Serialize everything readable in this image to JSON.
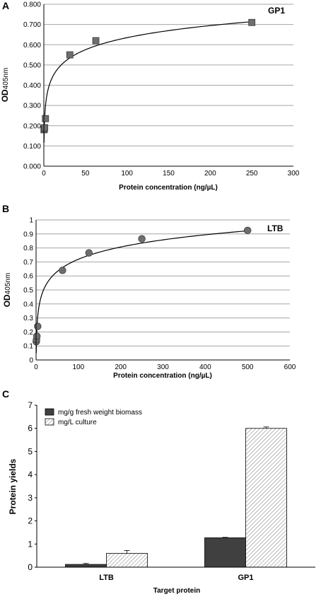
{
  "chart_data": [
    {
      "type": "scatter",
      "panel": "A",
      "inset_label": "GP1",
      "xlabel": "Protein concentration  (ng/µL)",
      "ylabel_main": "OD",
      "ylabel_sub": "405nm",
      "xlim": [
        0,
        300
      ],
      "ylim": [
        0,
        0.8
      ],
      "xticks": [
        "0",
        "50",
        "100",
        "150",
        "200",
        "250",
        "300"
      ],
      "yticks": [
        "0.000",
        "0.100",
        "0.200",
        "0.300",
        "0.400",
        "0.500",
        "0.600",
        "0.700",
        "0.800"
      ],
      "marker": "square",
      "marker_color": "#6e6e6e",
      "grid": true,
      "x": [
        0.24,
        0.49,
        0.98,
        1.95,
        31.25,
        62.5,
        250
      ],
      "y": [
        0.18,
        0.185,
        0.19,
        0.235,
        0.55,
        0.62,
        0.71
      ],
      "fit": "logarithmic"
    },
    {
      "type": "scatter",
      "panel": "B",
      "inset_label": "LTB",
      "xlabel": "Protein concentration (ng/µL)",
      "ylabel_main": "OD",
      "ylabel_sub": "405nm",
      "xlim": [
        0,
        600
      ],
      "ylim": [
        0,
        1
      ],
      "xticks": [
        "0",
        "100",
        "200",
        "300",
        "400",
        "500",
        "600"
      ],
      "yticks": [
        "0",
        "0.1",
        "0.2",
        "0.3",
        "0.4",
        "0.5",
        "0.6",
        "0.7",
        "0.8",
        "0.9",
        "1"
      ],
      "marker": "circle",
      "marker_color": "#6e6e6e",
      "grid": true,
      "x": [
        0.49,
        0.98,
        1.95,
        3.9,
        62.5,
        125,
        250,
        500
      ],
      "y": [
        0.13,
        0.145,
        0.17,
        0.24,
        0.64,
        0.765,
        0.865,
        0.925
      ],
      "fit": "logarithmic"
    },
    {
      "type": "bar",
      "panel": "C",
      "categories": [
        "LTB",
        "GP1"
      ],
      "xlabel": "Target protein",
      "ylabel": "Protein yields",
      "ylim": [
        0,
        7
      ],
      "yticks": [
        "0",
        "1",
        "2",
        "3",
        "4",
        "5",
        "6",
        "7"
      ],
      "legend_position": "top-left",
      "series": [
        {
          "name": "mg/g fresh weight biomass",
          "values": [
            0.12,
            1.27
          ],
          "errors": [
            0.04,
            0.02
          ],
          "color": "#404040",
          "pattern": "solid"
        },
        {
          "name": "mg/L culture",
          "values": [
            0.6,
            6.0
          ],
          "errors": [
            0.12,
            0.06
          ],
          "color": "#ffffff",
          "pattern": "hatched"
        }
      ]
    }
  ]
}
